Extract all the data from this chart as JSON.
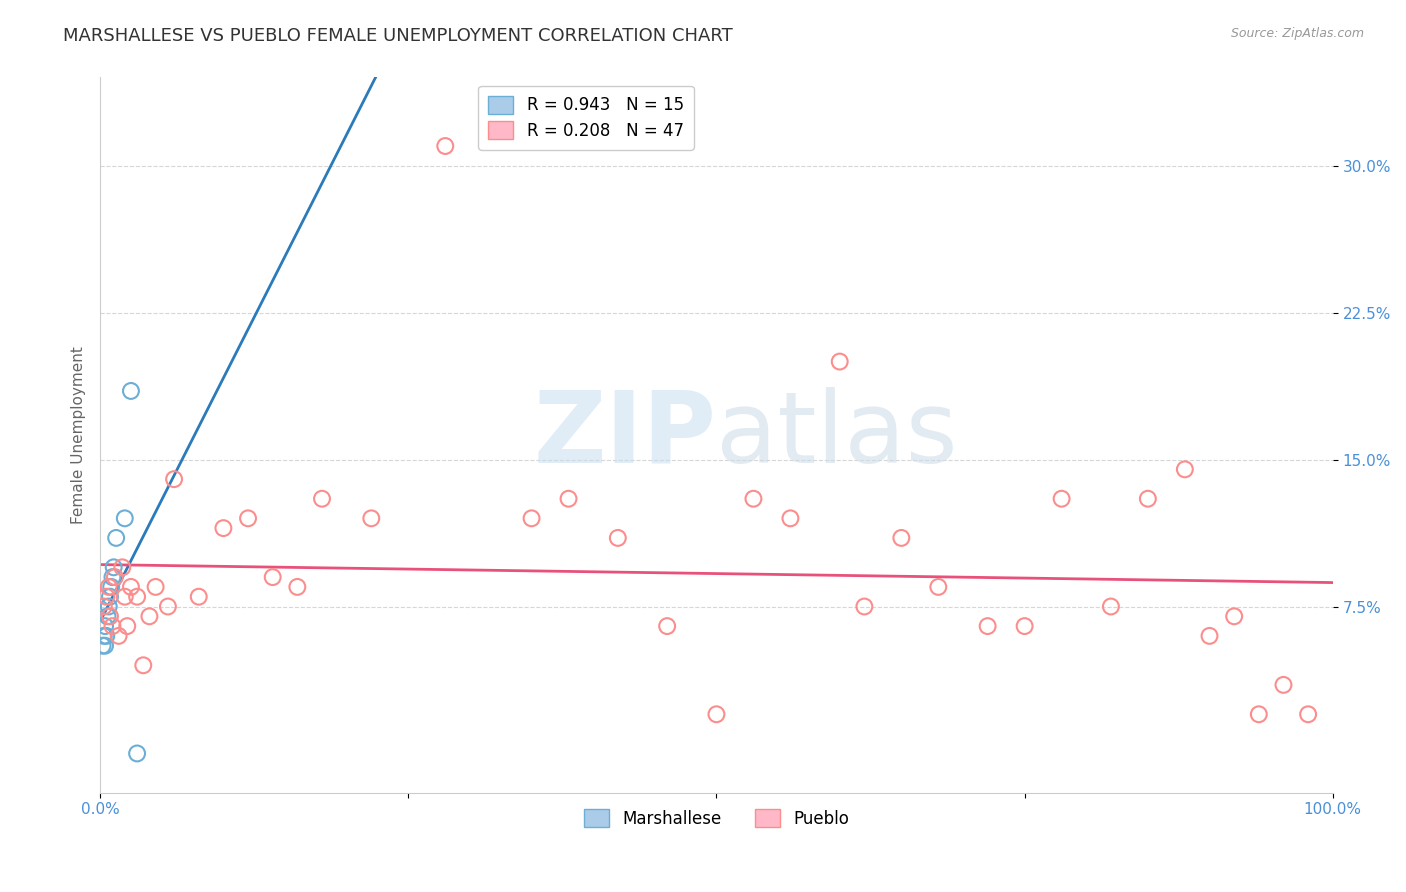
{
  "title": "MARSHALLESE VS PUEBLO FEMALE UNEMPLOYMENT CORRELATION CHART",
  "source": "Source: ZipAtlas.com",
  "ylabel": "Female Unemployment",
  "y_tick_labels": [
    "7.5%",
    "15.0%",
    "22.5%",
    "30.0%"
  ],
  "y_ticks": [
    0.075,
    0.15,
    0.225,
    0.3
  ],
  "xlim": [
    0.0,
    1.0
  ],
  "ylim": [
    -0.02,
    0.345
  ],
  "marshallese_R": 0.943,
  "marshallese_N": 15,
  "pueblo_R": 0.208,
  "pueblo_N": 47,
  "marshallese_color": "#6baed6",
  "pueblo_color": "#fc8d8d",
  "trendline_marshallese_color": "#2b7bba",
  "trendline_pueblo_color": "#e8527a",
  "background_color": "#ffffff",
  "grid_color": "#cccccc",
  "marshallese_x": [
    0.002,
    0.003,
    0.004,
    0.004,
    0.005,
    0.006,
    0.007,
    0.008,
    0.009,
    0.01,
    0.011,
    0.013,
    0.02,
    0.025,
    0.03
  ],
  "marshallese_y": [
    0.055,
    0.06,
    0.065,
    0.055,
    0.06,
    0.07,
    0.075,
    0.08,
    0.085,
    0.09,
    0.095,
    0.11,
    0.12,
    0.185,
    0.0
  ],
  "pueblo_x": [
    0.003,
    0.005,
    0.007,
    0.008,
    0.01,
    0.012,
    0.015,
    0.018,
    0.02,
    0.022,
    0.025,
    0.03,
    0.035,
    0.04,
    0.045,
    0.055,
    0.06,
    0.08,
    0.1,
    0.12,
    0.14,
    0.16,
    0.18,
    0.22,
    0.28,
    0.35,
    0.38,
    0.42,
    0.46,
    0.5,
    0.53,
    0.56,
    0.6,
    0.62,
    0.65,
    0.68,
    0.72,
    0.75,
    0.78,
    0.82,
    0.85,
    0.88,
    0.9,
    0.92,
    0.94,
    0.96,
    0.98
  ],
  "pueblo_y": [
    0.075,
    0.08,
    0.085,
    0.07,
    0.065,
    0.09,
    0.06,
    0.095,
    0.08,
    0.065,
    0.085,
    0.08,
    0.045,
    0.07,
    0.085,
    0.075,
    0.14,
    0.08,
    0.115,
    0.12,
    0.09,
    0.085,
    0.13,
    0.12,
    0.31,
    0.12,
    0.13,
    0.11,
    0.065,
    0.02,
    0.13,
    0.12,
    0.2,
    0.075,
    0.11,
    0.085,
    0.065,
    0.065,
    0.13,
    0.075,
    0.13,
    0.145,
    0.06,
    0.07,
    0.02,
    0.035,
    0.02
  ],
  "trendline_marshallese_x0": 0.0,
  "trendline_marshallese_x1": 1.0,
  "trendline_pueblo_x0": 0.0,
  "trendline_pueblo_x1": 1.0,
  "marker_size": 130,
  "marker_linewidth": 1.5,
  "title_fontsize": 13,
  "axis_label_fontsize": 11,
  "tick_fontsize": 11,
  "legend_fontsize": 12
}
